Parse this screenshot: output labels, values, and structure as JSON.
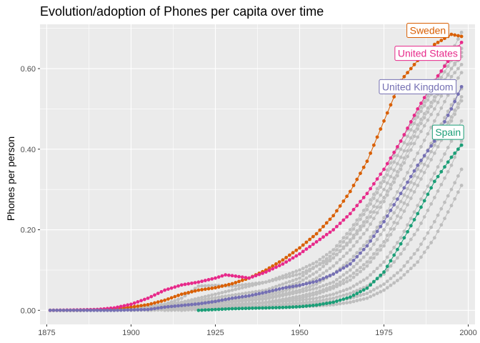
{
  "chart_data": {
    "type": "line",
    "title": "Evolution/adoption of Phones per capita over time",
    "xlabel": "",
    "ylabel": "Phones per person",
    "xlim": [
      1873,
      2002
    ],
    "ylim": [
      -0.035,
      0.71
    ],
    "x_ticks": [
      1875,
      1900,
      1925,
      1950,
      1975,
      2000
    ],
    "y_ticks": [
      0.0,
      0.2,
      0.4,
      0.6
    ],
    "y_tick_labels": [
      "0.00",
      "0.20",
      "0.40",
      "0.60"
    ],
    "grid": true,
    "panel_background": "#EBEBEB",
    "grid_color": "#FFFFFF",
    "background_series_color": "#BEBEBE",
    "highlighted_series": [
      {
        "name": "Sweden",
        "color": "#D95F02",
        "points": [
          [
            1876,
            0.0
          ],
          [
            1885,
            0.0
          ],
          [
            1890,
            0.001
          ],
          [
            1895,
            0.004
          ],
          [
            1900,
            0.008
          ],
          [
            1905,
            0.014
          ],
          [
            1910,
            0.025
          ],
          [
            1915,
            0.04
          ],
          [
            1920,
            0.05
          ],
          [
            1925,
            0.056
          ],
          [
            1930,
            0.066
          ],
          [
            1935,
            0.08
          ],
          [
            1940,
            0.1
          ],
          [
            1945,
            0.125
          ],
          [
            1950,
            0.155
          ],
          [
            1955,
            0.19
          ],
          [
            1960,
            0.235
          ],
          [
            1965,
            0.295
          ],
          [
            1970,
            0.37
          ],
          [
            1975,
            0.47
          ],
          [
            1980,
            0.57
          ],
          [
            1985,
            0.62
          ],
          [
            1990,
            0.66
          ],
          [
            1995,
            0.685
          ],
          [
            1998,
            0.68
          ]
        ]
      },
      {
        "name": "United States",
        "color": "#E7298A",
        "points": [
          [
            1876,
            0.0
          ],
          [
            1885,
            0.001
          ],
          [
            1890,
            0.002
          ],
          [
            1895,
            0.006
          ],
          [
            1900,
            0.015
          ],
          [
            1905,
            0.03
          ],
          [
            1910,
            0.05
          ],
          [
            1915,
            0.063
          ],
          [
            1920,
            0.07
          ],
          [
            1925,
            0.08
          ],
          [
            1928,
            0.088
          ],
          [
            1930,
            0.086
          ],
          [
            1935,
            0.08
          ],
          [
            1940,
            0.095
          ],
          [
            1945,
            0.115
          ],
          [
            1950,
            0.14
          ],
          [
            1955,
            0.17
          ],
          [
            1960,
            0.2
          ],
          [
            1965,
            0.24
          ],
          [
            1970,
            0.29
          ],
          [
            1975,
            0.35
          ],
          [
            1980,
            0.42
          ],
          [
            1985,
            0.5
          ],
          [
            1990,
            0.57
          ],
          [
            1995,
            0.63
          ],
          [
            1998,
            0.665
          ]
        ]
      },
      {
        "name": "United Kingdom",
        "color": "#7570B3",
        "points": [
          [
            1876,
            0.0
          ],
          [
            1885,
            0.0
          ],
          [
            1890,
            0.0
          ],
          [
            1895,
            0.0
          ],
          [
            1900,
            0.001
          ],
          [
            1905,
            0.002
          ],
          [
            1910,
            0.008
          ],
          [
            1915,
            0.012
          ],
          [
            1920,
            0.016
          ],
          [
            1925,
            0.022
          ],
          [
            1930,
            0.03
          ],
          [
            1935,
            0.036
          ],
          [
            1940,
            0.045
          ],
          [
            1945,
            0.055
          ],
          [
            1950,
            0.062
          ],
          [
            1955,
            0.072
          ],
          [
            1960,
            0.09
          ],
          [
            1965,
            0.115
          ],
          [
            1970,
            0.16
          ],
          [
            1975,
            0.22
          ],
          [
            1980,
            0.29
          ],
          [
            1985,
            0.36
          ],
          [
            1990,
            0.42
          ],
          [
            1995,
            0.5
          ],
          [
            1998,
            0.555
          ]
        ]
      },
      {
        "name": "Spain",
        "color": "#1B9E77",
        "points": [
          [
            1920,
            0.0
          ],
          [
            1925,
            0.002
          ],
          [
            1930,
            0.004
          ],
          [
            1935,
            0.005
          ],
          [
            1940,
            0.006
          ],
          [
            1945,
            0.007
          ],
          [
            1950,
            0.009
          ],
          [
            1955,
            0.013
          ],
          [
            1960,
            0.02
          ],
          [
            1965,
            0.033
          ],
          [
            1970,
            0.055
          ],
          [
            1975,
            0.095
          ],
          [
            1980,
            0.165
          ],
          [
            1985,
            0.24
          ],
          [
            1990,
            0.32
          ],
          [
            1995,
            0.38
          ],
          [
            1998,
            0.41
          ]
        ]
      }
    ],
    "background_series": [
      {
        "points": [
          [
            1880,
            0.0
          ],
          [
            1900,
            0.005
          ],
          [
            1920,
            0.025
          ],
          [
            1940,
            0.05
          ],
          [
            1950,
            0.08
          ],
          [
            1955,
            0.11
          ],
          [
            1960,
            0.14
          ],
          [
            1965,
            0.19
          ],
          [
            1970,
            0.25
          ],
          [
            1975,
            0.32
          ],
          [
            1980,
            0.4
          ],
          [
            1985,
            0.48
          ],
          [
            1990,
            0.55
          ],
          [
            1995,
            0.62
          ],
          [
            1998,
            0.65
          ]
        ]
      },
      {
        "points": [
          [
            1882,
            0.0
          ],
          [
            1900,
            0.004
          ],
          [
            1920,
            0.02
          ],
          [
            1940,
            0.04
          ],
          [
            1950,
            0.07
          ],
          [
            1955,
            0.095
          ],
          [
            1960,
            0.13
          ],
          [
            1965,
            0.175
          ],
          [
            1970,
            0.23
          ],
          [
            1975,
            0.3
          ],
          [
            1980,
            0.38
          ],
          [
            1985,
            0.46
          ],
          [
            1990,
            0.53
          ],
          [
            1995,
            0.6
          ],
          [
            1998,
            0.63
          ]
        ]
      },
      {
        "points": [
          [
            1885,
            0.0
          ],
          [
            1900,
            0.003
          ],
          [
            1920,
            0.018
          ],
          [
            1940,
            0.035
          ],
          [
            1950,
            0.06
          ],
          [
            1955,
            0.08
          ],
          [
            1960,
            0.11
          ],
          [
            1965,
            0.15
          ],
          [
            1970,
            0.2
          ],
          [
            1975,
            0.27
          ],
          [
            1980,
            0.35
          ],
          [
            1985,
            0.43
          ],
          [
            1990,
            0.5
          ],
          [
            1995,
            0.58
          ],
          [
            1998,
            0.61
          ]
        ]
      },
      {
        "points": [
          [
            1888,
            0.0
          ],
          [
            1900,
            0.003
          ],
          [
            1920,
            0.015
          ],
          [
            1940,
            0.03
          ],
          [
            1950,
            0.05
          ],
          [
            1955,
            0.065
          ],
          [
            1960,
            0.09
          ],
          [
            1965,
            0.125
          ],
          [
            1970,
            0.17
          ],
          [
            1975,
            0.23
          ],
          [
            1980,
            0.31
          ],
          [
            1985,
            0.39
          ],
          [
            1990,
            0.47
          ],
          [
            1995,
            0.55
          ],
          [
            1998,
            0.59
          ]
        ]
      },
      {
        "points": [
          [
            1890,
            0.0
          ],
          [
            1905,
            0.004
          ],
          [
            1920,
            0.013
          ],
          [
            1940,
            0.028
          ],
          [
            1950,
            0.045
          ],
          [
            1955,
            0.055
          ],
          [
            1960,
            0.07
          ],
          [
            1965,
            0.1
          ],
          [
            1970,
            0.14
          ],
          [
            1975,
            0.2
          ],
          [
            1980,
            0.27
          ],
          [
            1985,
            0.35
          ],
          [
            1990,
            0.43
          ],
          [
            1995,
            0.51
          ],
          [
            1998,
            0.55
          ]
        ]
      },
      {
        "points": [
          [
            1892,
            0.0
          ],
          [
            1905,
            0.003
          ],
          [
            1920,
            0.01
          ],
          [
            1940,
            0.02
          ],
          [
            1950,
            0.03
          ],
          [
            1955,
            0.04
          ],
          [
            1960,
            0.055
          ],
          [
            1965,
            0.075
          ],
          [
            1970,
            0.11
          ],
          [
            1975,
            0.16
          ],
          [
            1980,
            0.23
          ],
          [
            1985,
            0.31
          ],
          [
            1990,
            0.39
          ],
          [
            1995,
            0.47
          ],
          [
            1998,
            0.52
          ]
        ]
      },
      {
        "points": [
          [
            1895,
            0.0
          ],
          [
            1910,
            0.004
          ],
          [
            1925,
            0.01
          ],
          [
            1940,
            0.018
          ],
          [
            1950,
            0.025
          ],
          [
            1955,
            0.03
          ],
          [
            1960,
            0.04
          ],
          [
            1965,
            0.055
          ],
          [
            1970,
            0.08
          ],
          [
            1975,
            0.12
          ],
          [
            1980,
            0.18
          ],
          [
            1985,
            0.26
          ],
          [
            1990,
            0.34
          ],
          [
            1995,
            0.42
          ],
          [
            1998,
            0.47
          ]
        ]
      },
      {
        "points": [
          [
            1900,
            0.0
          ],
          [
            1910,
            0.002
          ],
          [
            1925,
            0.006
          ],
          [
            1940,
            0.012
          ],
          [
            1950,
            0.018
          ],
          [
            1955,
            0.022
          ],
          [
            1960,
            0.03
          ],
          [
            1965,
            0.042
          ],
          [
            1970,
            0.06
          ],
          [
            1975,
            0.09
          ],
          [
            1980,
            0.14
          ],
          [
            1985,
            0.2
          ],
          [
            1990,
            0.28
          ],
          [
            1995,
            0.36
          ],
          [
            1998,
            0.42
          ]
        ]
      },
      {
        "points": [
          [
            1905,
            0.0
          ],
          [
            1920,
            0.004
          ],
          [
            1935,
            0.008
          ],
          [
            1945,
            0.012
          ],
          [
            1950,
            0.014
          ],
          [
            1955,
            0.017
          ],
          [
            1960,
            0.022
          ],
          [
            1965,
            0.03
          ],
          [
            1970,
            0.042
          ],
          [
            1975,
            0.065
          ],
          [
            1980,
            0.1
          ],
          [
            1985,
            0.15
          ],
          [
            1990,
            0.22
          ],
          [
            1995,
            0.3
          ],
          [
            1998,
            0.35
          ]
        ]
      },
      {
        "points": [
          [
            1910,
            0.0
          ],
          [
            1925,
            0.003
          ],
          [
            1940,
            0.006
          ],
          [
            1950,
            0.009
          ],
          [
            1955,
            0.011
          ],
          [
            1960,
            0.014
          ],
          [
            1965,
            0.02
          ],
          [
            1970,
            0.03
          ],
          [
            1975,
            0.05
          ],
          [
            1980,
            0.08
          ],
          [
            1985,
            0.12
          ],
          [
            1990,
            0.18
          ],
          [
            1995,
            0.26
          ],
          [
            1998,
            0.31
          ]
        ]
      },
      {
        "points": [
          [
            1905,
            0.0
          ],
          [
            1915,
            0.03
          ],
          [
            1920,
            0.06
          ],
          [
            1925,
            0.062
          ],
          [
            1930,
            0.06
          ],
          [
            1935,
            0.065
          ],
          [
            1940,
            0.07
          ],
          [
            1945,
            0.085
          ],
          [
            1950,
            0.1
          ],
          [
            1955,
            0.12
          ],
          [
            1960,
            0.15
          ],
          [
            1965,
            0.2
          ],
          [
            1970,
            0.26
          ],
          [
            1975,
            0.33
          ],
          [
            1980,
            0.42
          ],
          [
            1985,
            0.49
          ],
          [
            1990,
            0.56
          ],
          [
            1995,
            0.64
          ],
          [
            1998,
            0.69
          ]
        ]
      },
      {
        "points": [
          [
            1915,
            0.0
          ],
          [
            1930,
            0.01
          ],
          [
            1940,
            0.02
          ],
          [
            1950,
            0.035
          ],
          [
            1955,
            0.045
          ],
          [
            1960,
            0.06
          ],
          [
            1965,
            0.085
          ],
          [
            1970,
            0.12
          ],
          [
            1975,
            0.17
          ],
          [
            1980,
            0.25
          ],
          [
            1985,
            0.33
          ],
          [
            1990,
            0.41
          ],
          [
            1995,
            0.48
          ],
          [
            1998,
            0.53
          ]
        ]
      },
      {
        "points": [
          [
            1900,
            0.0
          ],
          [
            1915,
            0.02
          ],
          [
            1925,
            0.04
          ],
          [
            1935,
            0.06
          ],
          [
            1945,
            0.08
          ],
          [
            1950,
            0.09
          ],
          [
            1955,
            0.11
          ],
          [
            1960,
            0.13
          ],
          [
            1965,
            0.17
          ],
          [
            1970,
            0.22
          ],
          [
            1975,
            0.28
          ],
          [
            1980,
            0.36
          ],
          [
            1985,
            0.45
          ],
          [
            1990,
            0.52
          ],
          [
            1995,
            0.6
          ],
          [
            1998,
            0.64
          ]
        ]
      }
    ],
    "annotations": [
      {
        "text": "Sweden",
        "series": "Sweden",
        "x": 1988,
        "y": 0.695
      },
      {
        "text": "United States",
        "series": "United States",
        "x": 1988,
        "y": 0.638
      },
      {
        "text": "United Kingdom",
        "series": "United Kingdom",
        "x": 1985,
        "y": 0.555
      },
      {
        "text": "Spain",
        "series": "Spain",
        "x": 1994,
        "y": 0.442
      }
    ]
  }
}
